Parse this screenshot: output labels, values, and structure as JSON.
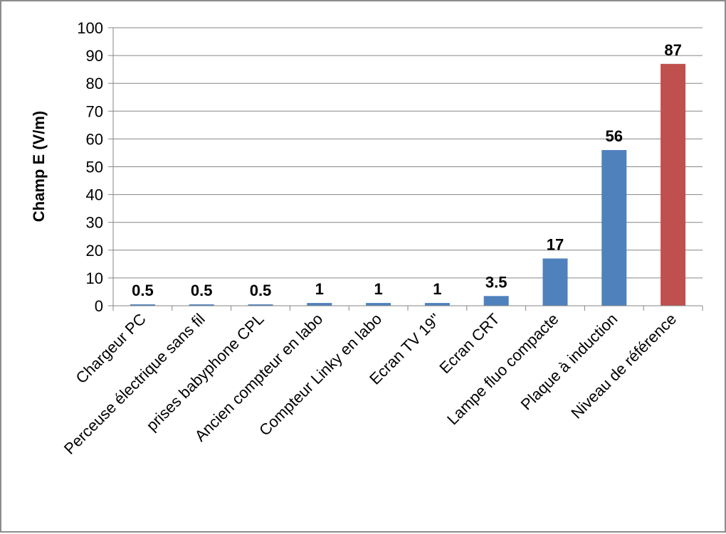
{
  "chart_data": {
    "type": "bar",
    "title": "",
    "xlabel": "",
    "ylabel": "Champ E (V/m)",
    "ylim": [
      0,
      100
    ],
    "yticks": [
      0,
      10,
      20,
      30,
      40,
      50,
      60,
      70,
      80,
      90,
      100
    ],
    "grid": true,
    "legend": "none",
    "categories": [
      "Chargeur PC",
      "Perceuse électrique sans fil",
      "prises babyphone CPL",
      "Ancien compteur en labo",
      "Compteur Linky en labo",
      "Ecran TV 19''",
      "Ecran CRT",
      "Lampe fluo compacte",
      "Plaque à induction",
      "Niveau de référence"
    ],
    "values": [
      0.5,
      0.5,
      0.5,
      1,
      1,
      1,
      3.5,
      17,
      56,
      87
    ],
    "data_labels": [
      "0.5",
      "0.5",
      "0.5",
      "1",
      "1",
      "1",
      "3.5",
      "17",
      "56",
      "87"
    ],
    "colors": {
      "bar": "#4f81bd",
      "reference_bar": "#c0504d",
      "grid": "#868686",
      "axis": "#868686"
    }
  }
}
